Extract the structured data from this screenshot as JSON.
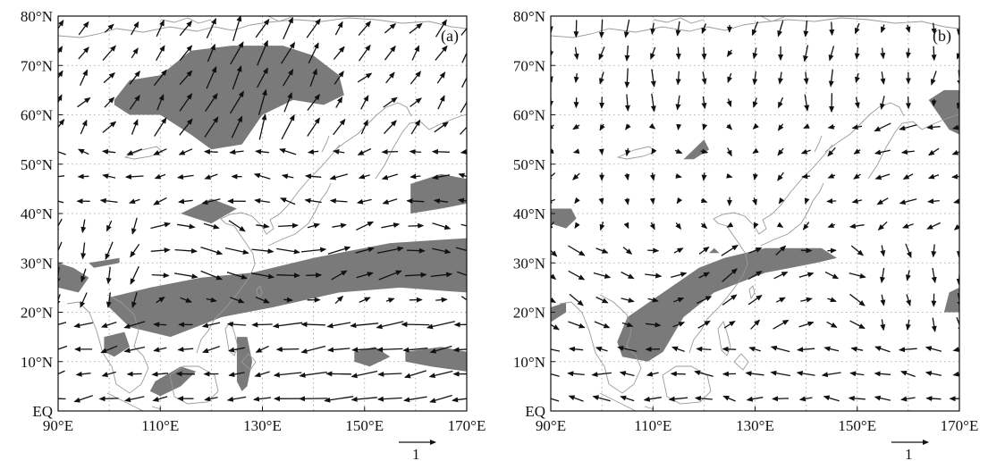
{
  "panels": [
    {
      "label": "(a)",
      "lon_ticks": [
        "90°E",
        "110°E",
        "130°E",
        "150°E",
        "170°E"
      ],
      "lat_ticks": [
        "EQ",
        "10°N",
        "20°N",
        "30°N",
        "40°N",
        "50°N",
        "60°N",
        "70°N",
        "80°N"
      ],
      "reference_vector_label": "1",
      "shaded_regions": [
        {
          "name": "polar-west-siberia",
          "lonlat": [
            [
              101,
              63
            ],
            [
              104,
              67
            ],
            [
              110,
              68
            ],
            [
              116,
              73
            ],
            [
              124,
              74
            ],
            [
              134,
              74
            ],
            [
              140,
              72
            ],
            [
              145,
              68
            ],
            [
              146,
              64
            ],
            [
              142,
              62
            ],
            [
              136,
              63
            ],
            [
              130,
              60
            ],
            [
              126,
              54
            ],
            [
              120,
              53
            ],
            [
              116,
              56
            ],
            [
              110,
              60
            ],
            [
              104,
              60
            ],
            [
              101,
              62
            ]
          ]
        },
        {
          "name": "northeast-pacific",
          "lonlat": [
            [
              159,
              40
            ],
            [
              159,
              46
            ],
            [
              165,
              48
            ],
            [
              170,
              47
            ],
            [
              170,
              42
            ],
            [
              165,
              41
            ]
          ]
        },
        {
          "name": "north-china",
          "lonlat": [
            [
              114,
              40
            ],
            [
              120,
              43
            ],
            [
              125,
              41
            ],
            [
              120,
              38
            ]
          ]
        },
        {
          "name": "subtropical-band",
          "lonlat": [
            [
              100,
              23
            ],
            [
              108,
              25
            ],
            [
              118,
              27
            ],
            [
              128,
              28
            ],
            [
              140,
              31
            ],
            [
              155,
              34
            ],
            [
              170,
              35
            ],
            [
              170,
              24
            ],
            [
              157,
              25
            ],
            [
              145,
              24
            ],
            [
              132,
              21
            ],
            [
              122,
              19
            ],
            [
              112,
              15
            ],
            [
              104,
              17
            ],
            [
              100,
              21
            ]
          ]
        },
        {
          "name": "west-edge",
          "lonlat": [
            [
              90,
              30
            ],
            [
              93,
              29
            ],
            [
              96,
              27
            ],
            [
              94,
              24
            ],
            [
              90,
              25
            ]
          ]
        },
        {
          "name": "india-blob",
          "lonlat": [
            [
              96,
              30
            ],
            [
              102,
              31
            ],
            [
              102,
              30
            ],
            [
              97,
              29
            ]
          ]
        },
        {
          "name": "indochina",
          "lonlat": [
            [
              99,
              15
            ],
            [
              103,
              16
            ],
            [
              104,
              13
            ],
            [
              101,
              11
            ],
            [
              99,
              12
            ]
          ]
        },
        {
          "name": "south-china-sea",
          "lonlat": [
            [
              108,
              4
            ],
            [
              109,
              6
            ],
            [
              114,
              9
            ],
            [
              117,
              8
            ],
            [
              114,
              5
            ],
            [
              110,
              3
            ]
          ]
        },
        {
          "name": "philippines-column",
          "lonlat": [
            [
              125,
              15
            ],
            [
              127,
              15
            ],
            [
              128,
              10
            ],
            [
              127,
              5
            ],
            [
              126,
              4
            ],
            [
              125,
              6
            ]
          ]
        },
        {
          "name": "pacific-east",
          "lonlat": [
            [
              158,
              12
            ],
            [
              165,
              13
            ],
            [
              170,
              12
            ],
            [
              170,
              8
            ],
            [
              163,
              9
            ],
            [
              158,
              10
            ]
          ]
        },
        {
          "name": "pacific-mid",
          "lonlat": [
            [
              148,
              12
            ],
            [
              152,
              13
            ],
            [
              155,
              11
            ],
            [
              151,
              9
            ],
            [
              148,
              10
            ]
          ]
        }
      ]
    },
    {
      "label": "(b)",
      "lon_ticks": [
        "90°E",
        "110°E",
        "130°E",
        "150°E",
        "170°E"
      ],
      "lat_ticks": [
        "EQ",
        "10°N",
        "20°N",
        "30°N",
        "40°N",
        "50°N",
        "60°N",
        "70°N",
        "80°N"
      ],
      "reference_vector_label": "1",
      "shaded_regions": [
        {
          "name": "upper-right",
          "lonlat": [
            [
              164,
              63
            ],
            [
              167,
              65
            ],
            [
              170,
              65
            ],
            [
              170,
              56
            ],
            [
              168,
              57
            ]
          ]
        },
        {
          "name": "small-north-china",
          "lonlat": [
            [
              116,
              51
            ],
            [
              118,
              53
            ],
            [
              120,
              55
            ],
            [
              121,
              53
            ],
            [
              118,
              51
            ]
          ]
        },
        {
          "name": "left-40N",
          "lonlat": [
            [
              90,
              38
            ],
            [
              90,
              41
            ],
            [
              94,
              41
            ],
            [
              95,
              39
            ],
            [
              93,
              37
            ]
          ]
        },
        {
          "name": "diagonal-band",
          "lonlat": [
            [
              103,
              14
            ],
            [
              105,
              19
            ],
            [
              112,
              24
            ],
            [
              119,
              29
            ],
            [
              124,
              31
            ],
            [
              132,
              33
            ],
            [
              143,
              33
            ],
            [
              146,
              31
            ],
            [
              142,
              30
            ],
            [
              132,
              28
            ],
            [
              122,
              24
            ],
            [
              116,
              19
            ],
            [
              112,
              12
            ],
            [
              109,
              10
            ],
            [
              104,
              11
            ]
          ]
        },
        {
          "name": "left-20N",
          "lonlat": [
            [
              90,
              18
            ],
            [
              90,
              21
            ],
            [
              93,
              22
            ],
            [
              93,
              20
            ]
          ]
        },
        {
          "name": "right-20N",
          "lonlat": [
            [
              167,
              20
            ],
            [
              170,
              20
            ],
            [
              170,
              25
            ],
            [
              168,
              24
            ]
          ]
        },
        {
          "name": "tiny-dot",
          "lonlat": [
            [
              121,
              32
            ],
            [
              122,
              33
            ],
            [
              123,
              32
            ]
          ]
        }
      ]
    }
  ]
}
